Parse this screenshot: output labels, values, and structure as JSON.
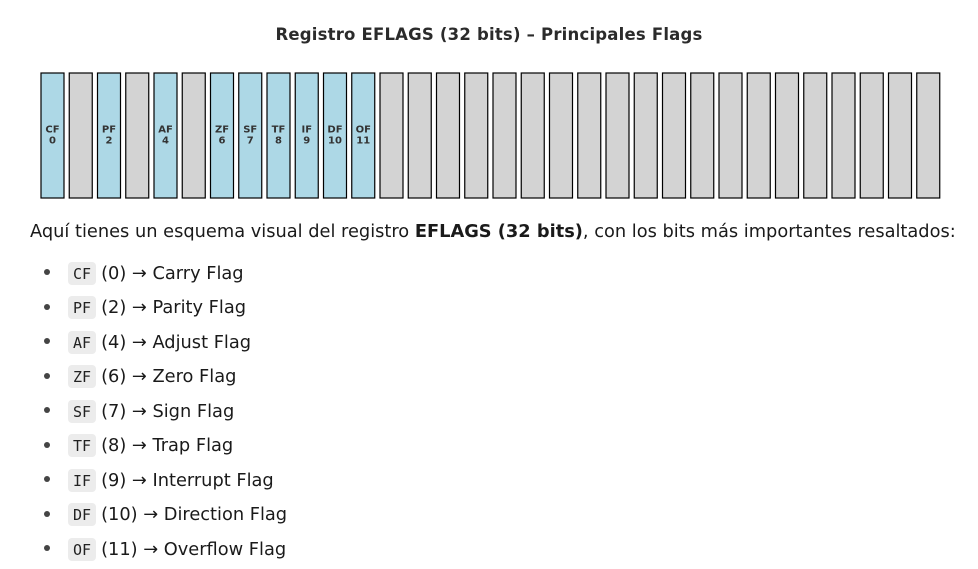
{
  "title": {
    "icon": "",
    "text": "Registro EFLAGS (32 bits) – Principales Flags"
  },
  "register": {
    "total_bits": 32,
    "highlight_color": "#add8e6",
    "plain_color": "#d3d3d3",
    "border_color": "#000000",
    "flags": [
      {
        "name": "CF",
        "bit": "0"
      },
      {
        "name": "PF",
        "bit": "2"
      },
      {
        "name": "AF",
        "bit": "4"
      },
      {
        "name": "ZF",
        "bit": "6"
      },
      {
        "name": "SF",
        "bit": "7"
      },
      {
        "name": "TF",
        "bit": "8"
      },
      {
        "name": "IF",
        "bit": "9"
      },
      {
        "name": "DF",
        "bit": "10"
      },
      {
        "name": "OF",
        "bit": "11"
      }
    ]
  },
  "intro": {
    "before": "Aquí tienes un esquema visual del registro ",
    "bold": "EFLAGS (32 bits)",
    "after": ", con los bits más importantes resaltados:"
  },
  "list": [
    {
      "code": "CF",
      "text": "(0) → Carry Flag"
    },
    {
      "code": "PF",
      "text": "(2) → Parity Flag"
    },
    {
      "code": "AF",
      "text": "(4) → Adjust Flag"
    },
    {
      "code": "ZF",
      "text": "(6) → Zero Flag"
    },
    {
      "code": "SF",
      "text": "(7) → Sign Flag"
    },
    {
      "code": "TF",
      "text": "(8) → Trap Flag"
    },
    {
      "code": "IF",
      "text": "(9) → Interrupt Flag"
    },
    {
      "code": "DF",
      "text": "(10) → Direction Flag"
    },
    {
      "code": "OF",
      "text": "(11) → Overflow Flag"
    }
  ]
}
